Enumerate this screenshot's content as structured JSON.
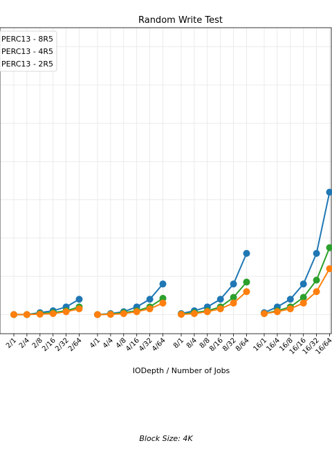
{
  "chart_data": {
    "type": "line",
    "title": "Random Write Test",
    "xlabel": "IODepth / Number of Jobs",
    "ylabel": "",
    "categories": [
      "2/1",
      "2/4",
      "2/8",
      "2/16",
      "2/32",
      "2/64",
      "4/1",
      "4/4",
      "4/8",
      "4/16",
      "4/32",
      "4/64",
      "8/1",
      "8/4",
      "8/8",
      "8/16",
      "8/32",
      "8/64",
      "16/1",
      "16/4",
      "16/8",
      "16/16",
      "16/32",
      "16/64"
    ],
    "ylim": [
      -1,
      15
    ],
    "grid": true,
    "legend_position": "top-left",
    "series": [
      {
        "name": "PERC13 - 8R5",
        "color": "#1f77b4",
        "values": [
          0,
          0,
          0.1,
          0.2,
          0.4,
          0.8,
          0,
          0.05,
          0.15,
          0.4,
          0.8,
          1.6,
          0.05,
          0.2,
          0.4,
          0.8,
          1.6,
          3.2,
          0.1,
          0.4,
          0.8,
          1.6,
          3.2,
          6.4
        ]
      },
      {
        "name": "PERC13 - 4R5",
        "color": "#2ca02c",
        "values": [
          0,
          0,
          0.05,
          0.1,
          0.2,
          0.4,
          0,
          0.02,
          0.1,
          0.2,
          0.4,
          0.85,
          0.02,
          0.1,
          0.2,
          0.4,
          0.9,
          1.7,
          0.05,
          0.2,
          0.4,
          0.9,
          1.8,
          3.5
        ]
      },
      {
        "name": "PERC13 - 2R5",
        "color": "#ff7f0e",
        "values": [
          0,
          0,
          0.02,
          0.05,
          0.15,
          0.3,
          0,
          0.01,
          0.05,
          0.15,
          0.3,
          0.6,
          0.01,
          0.05,
          0.15,
          0.3,
          0.6,
          1.2,
          0.05,
          0.15,
          0.3,
          0.6,
          1.2,
          2.4
        ]
      }
    ]
  },
  "footnote": "Block Size: 4K"
}
